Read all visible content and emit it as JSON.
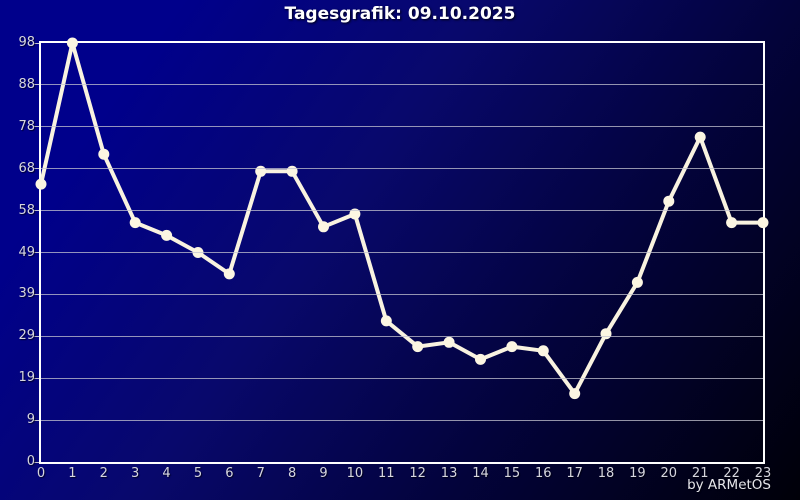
{
  "window": {
    "title": "Tagesgrafik: 09.10.2025",
    "credit": "by ARMetOS"
  },
  "colors": {
    "background_start": "#00008b",
    "background_end": "#000008",
    "plot_border": "#ffffff",
    "grid": "#c4c4d0",
    "line": "#f9f3e0",
    "marker": "#fcf6e2",
    "title_text": "#ffffff",
    "tick_text": "#d6d6de"
  },
  "chart_data": {
    "type": "line",
    "title": "Tagesgrafik: 09.10.2025",
    "xlabel": "",
    "ylabel": "",
    "x": [
      0,
      1,
      2,
      3,
      4,
      5,
      6,
      7,
      8,
      9,
      10,
      11,
      12,
      13,
      14,
      15,
      16,
      17,
      18,
      19,
      20,
      21,
      22,
      23
    ],
    "x_tick_labels": [
      "0",
      "1",
      "2",
      "3",
      "4",
      "5",
      "6",
      "7",
      "8",
      "9",
      "10",
      "11",
      "12",
      "13",
      "14",
      "15",
      "16",
      "17",
      "18",
      "19",
      "20",
      "21",
      "22",
      "23"
    ],
    "values": [
      65,
      98,
      72,
      56,
      53,
      49,
      44,
      68,
      68,
      55,
      58,
      33,
      27,
      28,
      24,
      27,
      26,
      16,
      30,
      42,
      61,
      76,
      56,
      56
    ],
    "ylim": [
      0,
      98
    ],
    "y_tick_labels_top_to_bottom": [
      "98",
      "88",
      "78",
      "68",
      "58",
      "49",
      "39",
      "29",
      "19",
      "9",
      "0"
    ],
    "grid": "horizontal",
    "legend": "none",
    "marker": "filled-circle"
  }
}
